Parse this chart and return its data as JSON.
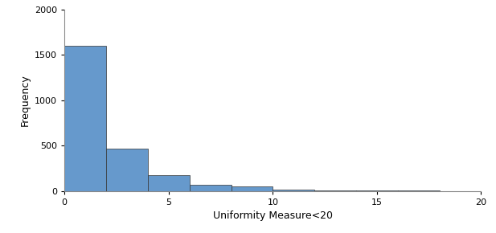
{
  "bin_edges": [
    0,
    2,
    4,
    6,
    8,
    10,
    12,
    14,
    16,
    18,
    20
  ],
  "frequencies": [
    1600,
    470,
    175,
    65,
    55,
    15,
    8,
    5,
    3,
    2
  ],
  "bar_color": "#6699CC",
  "bar_edge_color": "#333333",
  "bar_edge_width": 0.5,
  "xlabel": "Uniformity Measure<20",
  "ylabel": "Frequency",
  "xlim": [
    0,
    20
  ],
  "ylim": [
    0,
    2000
  ],
  "yticks": [
    0,
    500,
    1000,
    1500,
    2000
  ],
  "xticks": [
    0,
    5,
    10,
    15,
    20
  ],
  "background_color": "#ffffff",
  "figure_background_color": "#ffffff",
  "axis_line_color": "#888888",
  "xlabel_fontsize": 9,
  "ylabel_fontsize": 9,
  "tick_fontsize": 8
}
